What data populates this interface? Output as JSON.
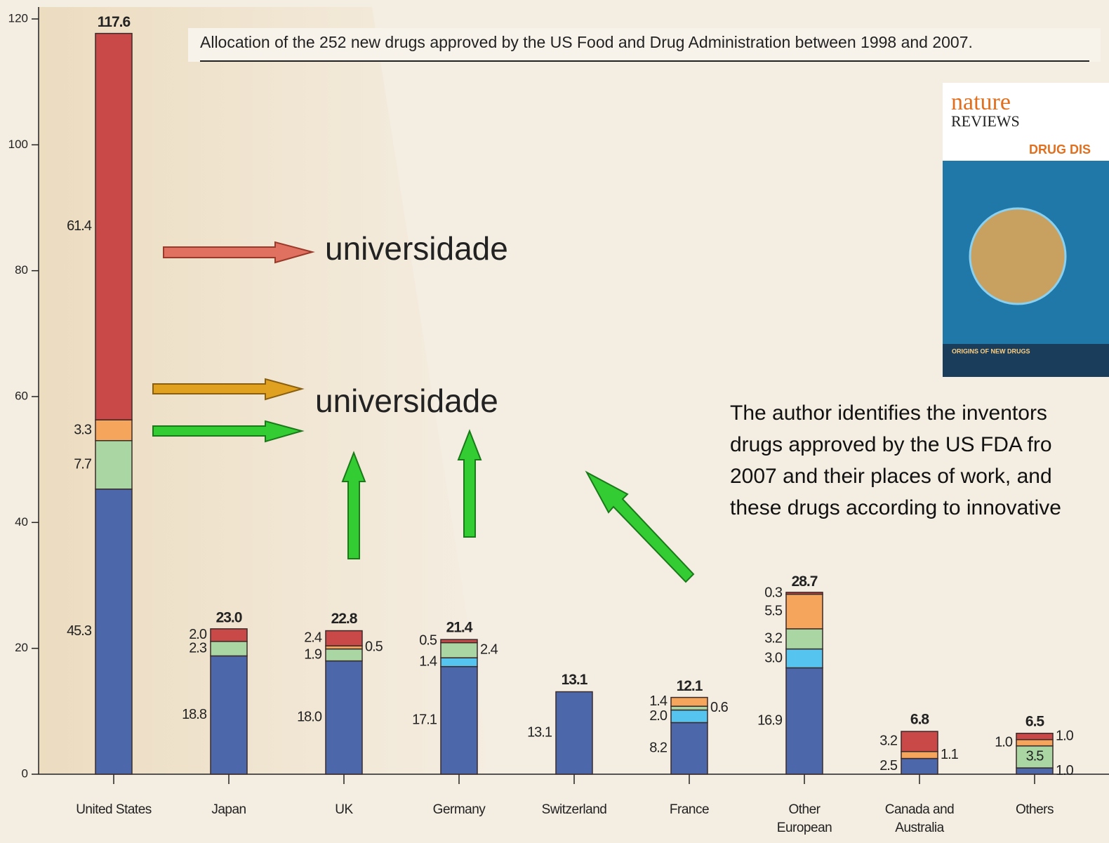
{
  "chart_data": {
    "type": "bar",
    "stacked": true,
    "title": "Allocation of the 252 new drugs approved by the US Food and Drug Administration between 1998   and 2007.",
    "categories": [
      "United States",
      "Japan",
      "UK",
      "Germany",
      "Switzerland",
      "France",
      "Other European",
      "Canada and Australia",
      "Others"
    ],
    "series": [
      {
        "color": "#4d68aa",
        "values": [
          45.3,
          18.8,
          18.0,
          17.1,
          13.1,
          8.2,
          16.9,
          2.5,
          1.0
        ],
        "value_labels": [
          "45.3",
          "18.8",
          "18.0",
          "17.1",
          "13.1",
          "8.2",
          "16.9",
          "2.5",
          "1.0"
        ]
      },
      {
        "color": "#55c4ef",
        "values": [
          null,
          null,
          null,
          1.4,
          null,
          2.0,
          3.0,
          null,
          null
        ],
        "value_labels": [
          null,
          null,
          null,
          "1.4",
          null,
          "2.0",
          "3.0",
          null,
          null
        ]
      },
      {
        "color": "#a9d6a2",
        "values": [
          7.7,
          2.3,
          1.9,
          2.4,
          null,
          0.6,
          3.2,
          null,
          3.5
        ],
        "value_labels": [
          "7.7",
          "2.3",
          "1.9",
          "2.4",
          null,
          "0.6",
          "3.2",
          null,
          "3.5"
        ]
      },
      {
        "color": "#f6a55c",
        "values": [
          3.3,
          null,
          0.5,
          null,
          null,
          1.4,
          5.5,
          1.1,
          1.0
        ],
        "value_labels": [
          "3.3",
          null,
          "0.5",
          null,
          null,
          "1.4",
          "5.5",
          "1.1",
          "1.0"
        ]
      },
      {
        "color": "#c94848",
        "values": [
          61.4,
          2.0,
          2.4,
          0.5,
          null,
          null,
          0.3,
          3.2,
          1.0
        ],
        "value_labels": [
          "61.4",
          "2.0",
          "2.4",
          "0.5",
          null,
          null,
          "0.3",
          "3.2",
          "1.0"
        ]
      }
    ],
    "totals": [
      117.6,
      23.0,
      22.8,
      21.4,
      13.1,
      12.1,
      28.7,
      6.8,
      6.5
    ],
    "total_labels": [
      "117.6",
      "23.0",
      "22.8",
      "21.4",
      "13.1",
      "12.1",
      "28.7",
      "6.8",
      "6.5"
    ],
    "ylim": [
      0,
      120
    ],
    "yticks": [
      0,
      20,
      40,
      60,
      80,
      100,
      120
    ]
  },
  "annotations": [
    "universidade",
    "universidade"
  ],
  "cover": [
    "nature",
    "REVIEWS",
    "DRUG DIS",
    "ORIGINS OF NEW DRUGS"
  ],
  "description": [
    "The author identifies the inventors",
    "drugs  approved  by the US FDA fro",
    "2007  and their places of work, and",
    "these drugs according to innovative"
  ]
}
